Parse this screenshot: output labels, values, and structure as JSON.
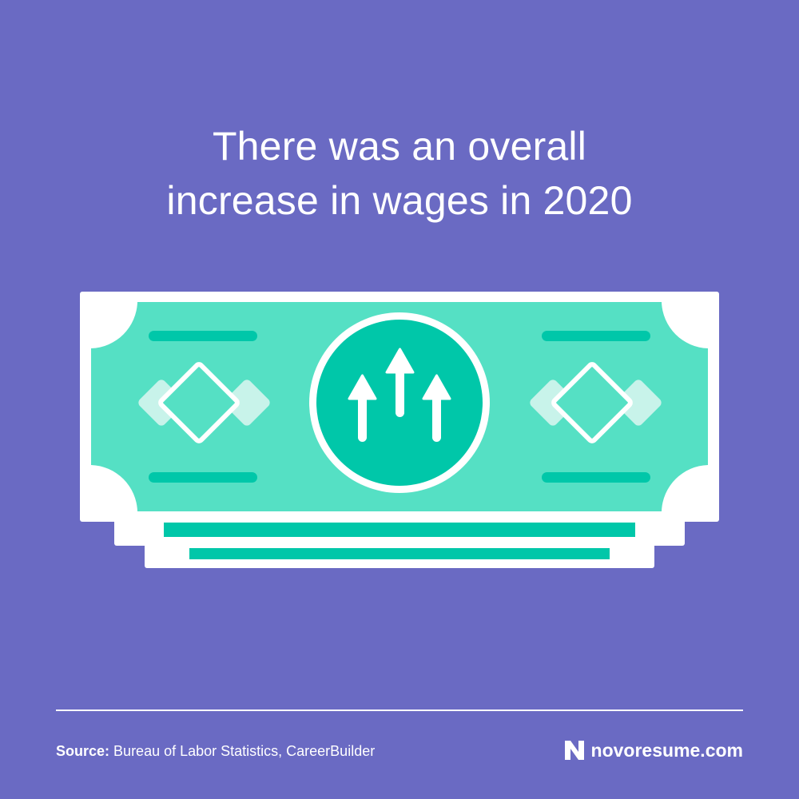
{
  "headline": {
    "line1": "There was an overall",
    "line2": "increase in wages in 2020"
  },
  "footer": {
    "source_label": "Source:",
    "source_text": "Bureau of Labor Statistics, CareerBuilder",
    "brand": "novoresume.com"
  },
  "colors": {
    "background": "#6a6ac3",
    "bill_light": "#55e0c4",
    "bill_dark": "#00c7a9",
    "white": "#ffffff"
  },
  "icons": [
    "dollar-bill-icon",
    "up-arrows-icon",
    "diamond-icon",
    "novoresume-logo-icon"
  ]
}
